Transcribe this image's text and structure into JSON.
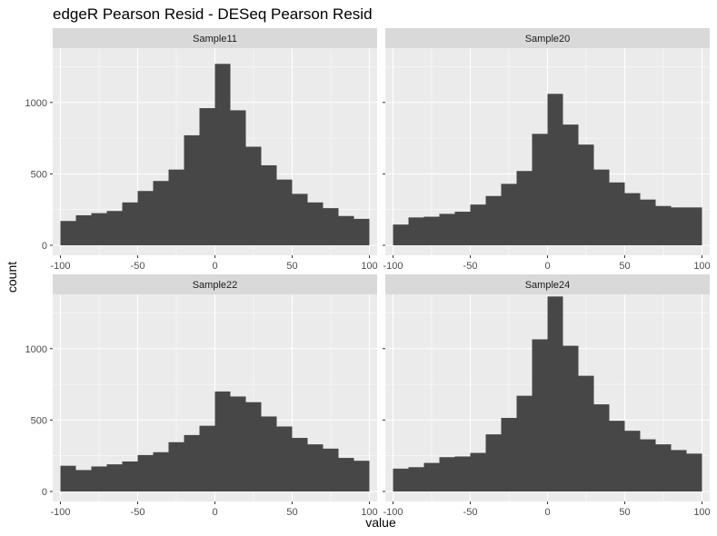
{
  "chart_data": {
    "type": "bar",
    "title": "edgeR Pearson Resid - DESeq Pearson Resid",
    "xlabel": "value",
    "ylabel": "count",
    "xlim": [
      -105,
      105
    ],
    "ylim": [
      -70,
      1380
    ],
    "x_ticks": [
      -100,
      -50,
      0,
      50,
      100
    ],
    "x_tick_labels": [
      "-100",
      "-50",
      "0",
      "50",
      "100"
    ],
    "y_ticks": [
      0,
      500,
      1000
    ],
    "y_tick_labels": [
      "0",
      "500",
      "1000"
    ],
    "grid": true,
    "bin_width": 10,
    "bin_centers": [
      -95,
      -85,
      -75,
      -65,
      -55,
      -45,
      -35,
      -25,
      -15,
      -5,
      5,
      15,
      25,
      35,
      45,
      55,
      65,
      75,
      85,
      95
    ],
    "colors": {
      "bar": "#474747",
      "panel_background": "#ebebeb",
      "strip_background": "#d9d9d9",
      "grid": "#ffffff",
      "tick": "#333333"
    },
    "facets": [
      {
        "name": "Sample11",
        "values": [
          170,
          210,
          225,
          240,
          300,
          380,
          450,
          530,
          770,
          960,
          1270,
          945,
          690,
          560,
          460,
          360,
          300,
          260,
          205,
          185
        ]
      },
      {
        "name": "Sample20",
        "values": [
          145,
          195,
          200,
          220,
          235,
          285,
          345,
          430,
          520,
          780,
          1060,
          845,
          705,
          530,
          440,
          365,
          320,
          275,
          265,
          265
        ]
      },
      {
        "name": "Sample22",
        "values": [
          180,
          150,
          175,
          190,
          210,
          255,
          275,
          345,
          395,
          460,
          700,
          665,
          625,
          525,
          455,
          375,
          330,
          300,
          235,
          215
        ]
      },
      {
        "name": "Sample24",
        "values": [
          160,
          170,
          200,
          240,
          245,
          270,
          400,
          515,
          670,
          1065,
          1365,
          1020,
          810,
          610,
          495,
          425,
          365,
          330,
          290,
          265
        ]
      }
    ]
  }
}
